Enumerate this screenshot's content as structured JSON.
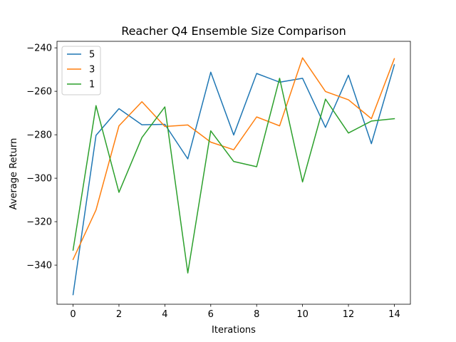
{
  "chart_data": {
    "type": "line",
    "title": "Reacher Q4 Ensemble Size Comparison",
    "xlabel": "Iterations",
    "ylabel": "Average Return",
    "x": [
      0,
      1,
      2,
      3,
      4,
      5,
      6,
      7,
      8,
      9,
      10,
      11,
      12,
      13,
      14
    ],
    "xlim": [
      -0.7,
      14.7
    ],
    "ylim": [
      -358,
      -237
    ],
    "xticks": [
      0,
      2,
      4,
      6,
      8,
      10,
      12,
      14
    ],
    "xtick_labels": [
      "0",
      "2",
      "4",
      "6",
      "8",
      "10",
      "12",
      "14"
    ],
    "yticks": [
      -340,
      -320,
      -300,
      -280,
      -260,
      -240
    ],
    "ytick_labels": [
      "−340",
      "−320",
      "−300",
      "−280",
      "−260",
      "−240"
    ],
    "grid": false,
    "legend_position": "top-left",
    "series": [
      {
        "name": "5",
        "color": "#1f77b4",
        "values": [
          -353.6,
          -280.3,
          -268.0,
          -275.4,
          -275.2,
          -291.1,
          -251.2,
          -280.1,
          -251.8,
          -255.8,
          -254.0,
          -276.6,
          -252.6,
          -284.1,
          -247.8
        ]
      },
      {
        "name": "3",
        "color": "#ff7f0e",
        "values": [
          -337.4,
          -314.6,
          -275.9,
          -264.8,
          -276.2,
          -275.5,
          -283.4,
          -286.9,
          -271.8,
          -275.9,
          -244.6,
          -260.1,
          -263.9,
          -272.6,
          -245.0
        ]
      },
      {
        "name": "1",
        "color": "#2ca02c",
        "values": [
          -333.1,
          -266.6,
          -306.5,
          -281.3,
          -267.2,
          -343.6,
          -278.2,
          -292.3,
          -294.7,
          -254.0,
          -301.7,
          -263.6,
          -279.2,
          -273.7,
          -272.6
        ]
      }
    ]
  }
}
